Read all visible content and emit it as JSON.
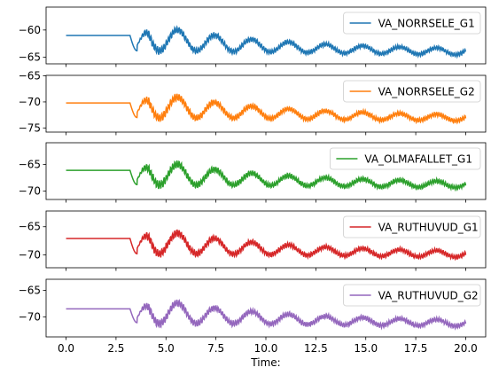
{
  "chart_data": [
    {
      "type": "line",
      "legend": "top-right",
      "ylim": [
        -66.2,
        -55.8
      ],
      "yticks": [
        -65,
        -60
      ],
      "series": [
        {
          "name": "VA_NORRSELE_G1",
          "color": "#1f77b4",
          "baseline": -61.0,
          "dip": -63.8,
          "peak": -56.3,
          "final": -65.1,
          "osc_amp": 1.5,
          "decay_amp": 2.4,
          "noise": 0.55
        }
      ]
    },
    {
      "type": "line",
      "legend": "top-right",
      "ylim": [
        -75.8,
        -64.9
      ],
      "yticks": [
        -75,
        -70,
        -65
      ],
      "series": [
        {
          "name": "VA_NORRSELE_G2",
          "color": "#ff7f0e",
          "baseline": -70.2,
          "dip": -73.0,
          "peak": -65.5,
          "final": -74.2,
          "osc_amp": 1.5,
          "decay_amp": 2.5,
          "noise": 0.6
        }
      ]
    },
    {
      "type": "line",
      "legend": "top-right",
      "ylim": [
        -71.6,
        -60.9
      ],
      "yticks": [
        -70,
        -65
      ],
      "series": [
        {
          "name": "VA_OLMAFALLET_G1",
          "color": "#2ca02c",
          "baseline": -66.1,
          "dip": -68.8,
          "peak": -61.5,
          "final": -69.9,
          "osc_amp": 1.5,
          "decay_amp": 2.4,
          "noise": 0.6
        }
      ]
    },
    {
      "type": "line",
      "legend": "top-right",
      "ylim": [
        -72.3,
        -62.2
      ],
      "yticks": [
        -70,
        -65
      ],
      "series": [
        {
          "name": "VA_RUTHUVUD_G1",
          "color": "#d62728",
          "baseline": -67.1,
          "dip": -69.8,
          "peak": -62.8,
          "final": -71.0,
          "osc_amp": 1.4,
          "decay_amp": 2.3,
          "noise": 0.55
        }
      ]
    },
    {
      "type": "line",
      "legend": "top-right",
      "xlabel": "Time:",
      "xlim": [
        -1.0,
        21.0
      ],
      "xticks": [
        "0.0",
        "2.5",
        "5.0",
        "7.5",
        "10.0",
        "12.5",
        "15.0",
        "17.5",
        "20.0"
      ],
      "ylim": [
        -73.8,
        -62.9
      ],
      "yticks": [
        -70,
        -65
      ],
      "series": [
        {
          "name": "VA_RUTHUVUD_G2",
          "color": "#9467bd",
          "baseline": -68.5,
          "dip": -71.1,
          "peak": -63.6,
          "final": -72.3,
          "osc_amp": 1.5,
          "decay_amp": 2.4,
          "noise": 0.6
        }
      ]
    }
  ],
  "disturbance_time": 3.2,
  "time_end": 20.0
}
